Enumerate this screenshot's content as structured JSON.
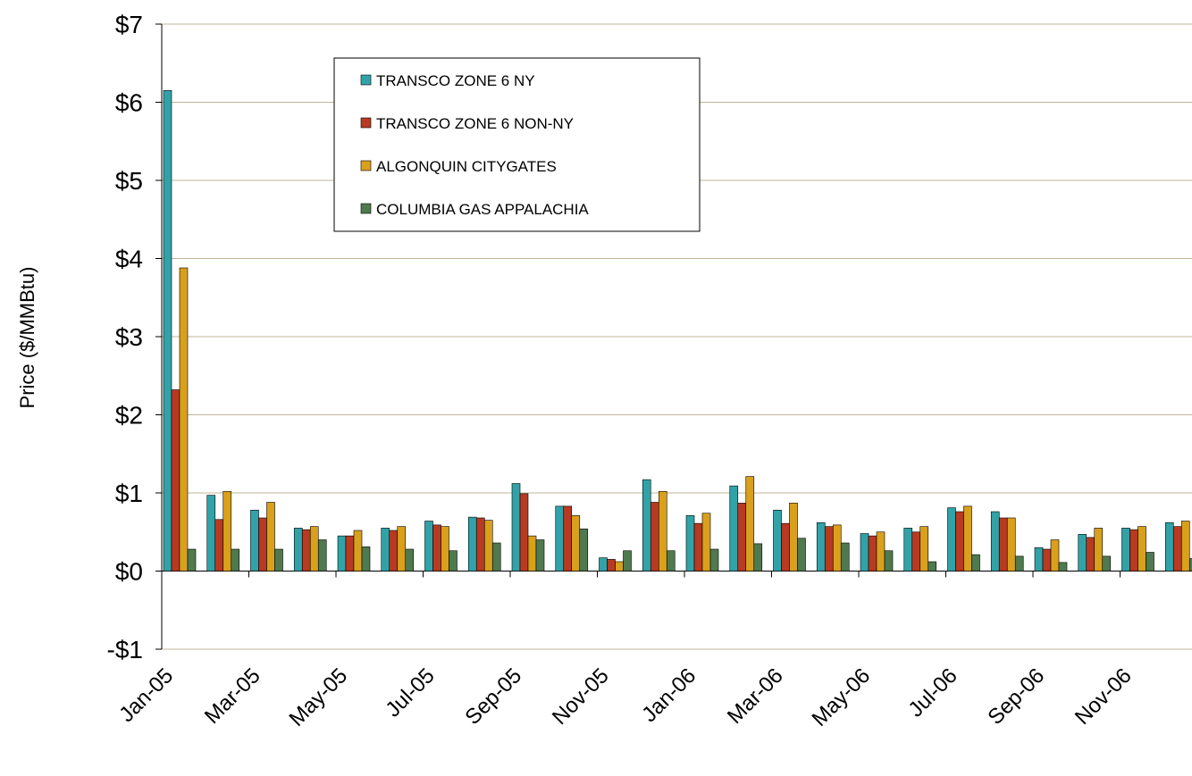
{
  "chart_data": {
    "type": "bar",
    "y_label": "Price ($/MMBtu)",
    "categories": [
      "Jan-05",
      null,
      "Mar-05",
      null,
      "May-05",
      null,
      "Jul-05",
      null,
      "Sep-05",
      null,
      "Nov-05",
      null,
      "Jan-06",
      null,
      "Mar-06",
      null,
      "May-06",
      null,
      "Jul-06",
      null,
      "Sep-06",
      null,
      "Nov-06",
      null
    ],
    "series": [
      {
        "name": "TRANSCO ZONE 6 NY",
        "color": "#31a3a8",
        "values": [
          6.15,
          0.97,
          0.78,
          0.55,
          0.45,
          0.55,
          0.64,
          0.69,
          1.12,
          0.83,
          0.17,
          1.17,
          0.71,
          1.09,
          0.78,
          0.62,
          0.48,
          0.55,
          0.81,
          0.76,
          0.3,
          0.47,
          0.55,
          0.62
        ]
      },
      {
        "name": "TRANSCO ZONE 6 NON-NY",
        "color": "#b83a22",
        "values": [
          2.32,
          0.66,
          0.68,
          0.53,
          0.45,
          0.52,
          0.59,
          0.68,
          0.99,
          0.83,
          0.15,
          0.88,
          0.61,
          0.87,
          0.61,
          0.57,
          0.45,
          0.5,
          0.76,
          0.68,
          0.28,
          0.43,
          0.53,
          0.57
        ]
      },
      {
        "name": "ALGONQUIN CITYGATES",
        "color": "#d9a01c",
        "values": [
          3.88,
          1.02,
          0.88,
          0.57,
          0.52,
          0.57,
          0.57,
          0.65,
          0.45,
          0.71,
          0.12,
          1.02,
          0.74,
          1.21,
          0.87,
          0.59,
          0.5,
          0.57,
          0.83,
          0.68,
          0.4,
          0.55,
          0.57,
          0.64
        ]
      },
      {
        "name": "COLUMBIA GAS APPALACHIA",
        "color": "#4f7a4f",
        "values": [
          0.28,
          0.28,
          0.28,
          0.4,
          0.31,
          0.28,
          0.26,
          0.36,
          0.4,
          0.54,
          0.26,
          0.26,
          0.28,
          0.35,
          0.42,
          0.36,
          0.26,
          0.12,
          0.21,
          0.19,
          0.11,
          0.19,
          0.24,
          0.16
        ]
      }
    ],
    "ylim": [
      -1,
      7
    ],
    "yticks": [
      {
        "value": -1,
        "label": "-$1"
      },
      {
        "value": 0,
        "label": "$0"
      },
      {
        "value": 1,
        "label": "$1"
      },
      {
        "value": 2,
        "label": "$2"
      },
      {
        "value": 3,
        "label": "$3"
      },
      {
        "value": 4,
        "label": "$4"
      },
      {
        "value": 5,
        "label": "$5"
      },
      {
        "value": 6,
        "label": "$6"
      },
      {
        "value": 7,
        "label": "$7"
      }
    ],
    "grid": true
  }
}
